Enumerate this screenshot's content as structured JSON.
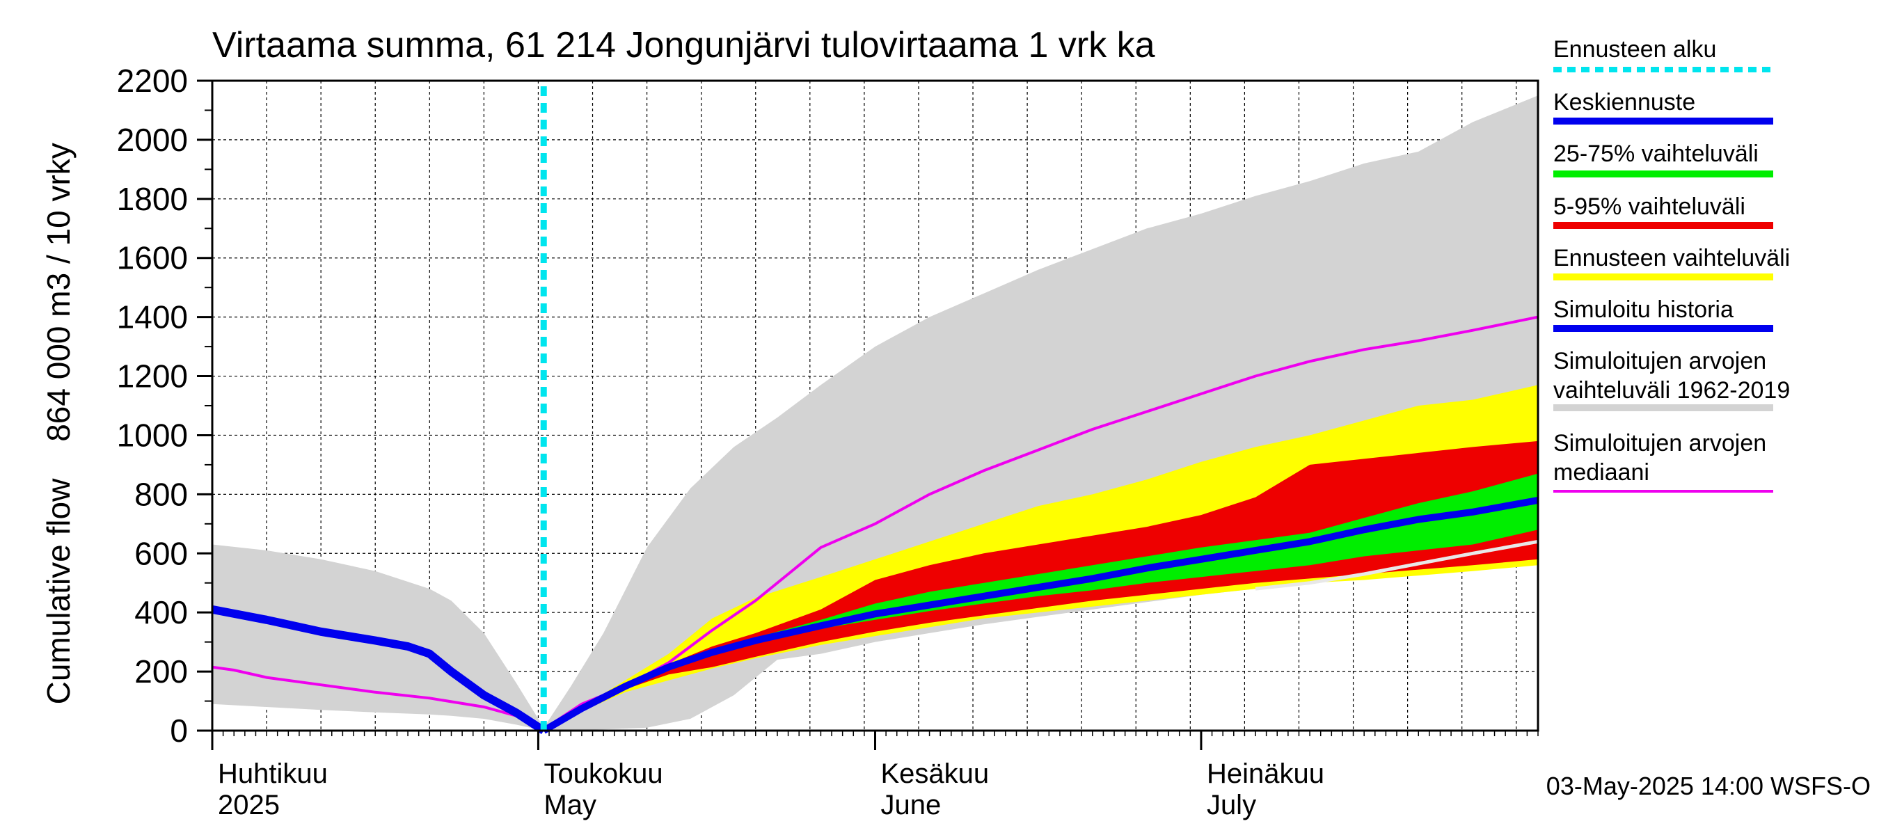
{
  "chart_data": {
    "type": "area",
    "title": "Virtaama summa, 61 214 Jongunjärvi tulovirtaama 1 vrk ka",
    "ylabel_top": "864 000 m3 / 10 vrky",
    "ylabel_bottom": "Cumulative flow",
    "ylim": [
      0,
      2200
    ],
    "yticks": [
      0,
      200,
      400,
      600,
      800,
      1000,
      1200,
      1400,
      1600,
      1800,
      2000,
      2200
    ],
    "grid": true,
    "x_unit": "days since 2025-04-01",
    "xlim": [
      0,
      122
    ],
    "forecast_start_day": 30.5,
    "month_labels": [
      {
        "fi": "Huhtikuu",
        "en": "2025",
        "day": 0
      },
      {
        "fi": "Toukokuu",
        "en": "May",
        "day": 30
      },
      {
        "fi": "Kesäkuu",
        "en": "June",
        "day": 61
      },
      {
        "fi": "Heinäkuu",
        "en": "July",
        "day": 91
      }
    ],
    "footer": "03-May-2025 14:00 WSFS-O",
    "legend": [
      {
        "label": "Ennusteen alku",
        "color": "#00e5ee",
        "style": "dotted"
      },
      {
        "label": "Keskiennuste",
        "color": "#0000ee",
        "style": "solid"
      },
      {
        "label": "25-75% vaihteluväli",
        "color": "#00ee00",
        "style": "solid"
      },
      {
        "label": "5-95% vaihteluväli",
        "color": "#ee0000",
        "style": "solid"
      },
      {
        "label": "Ennusteen vaihteluväli",
        "color": "#ffff00",
        "style": "solid"
      },
      {
        "label": "Simuloitu historia",
        "color": "#0000ee",
        "style": "solid"
      },
      {
        "label": "Simuloitujen arvojen vaihteluväli 1962-2019",
        "lines": [
          "Simuloitujen arvojen",
          "vaihteluväli 1962-2019"
        ],
        "color": "#d3d3d3",
        "style": "solid"
      },
      {
        "label": "Simuloitujen arvojen mediaani",
        "lines": [
          "Simuloitujen arvojen",
          "mediaani"
        ],
        "color": "#ee00ee",
        "style": "solid"
      }
    ],
    "series": {
      "hist_range": {
        "x": [
          0,
          5,
          10,
          15,
          20,
          22,
          25,
          28,
          30.5,
          33,
          36,
          40,
          44,
          48,
          52,
          56,
          61,
          66,
          71,
          76,
          81,
          86,
          91,
          96,
          101,
          106,
          111,
          116,
          122
        ],
        "upper": [
          630,
          610,
          580,
          540,
          480,
          440,
          330,
          160,
          10,
          150,
          330,
          620,
          820,
          960,
          1060,
          1170,
          1300,
          1400,
          1480,
          1560,
          1630,
          1700,
          1750,
          1810,
          1860,
          1920,
          1960,
          2060,
          2150
        ],
        "lower": [
          90,
          80,
          70,
          62,
          55,
          50,
          40,
          20,
          0,
          2,
          4,
          10,
          40,
          120,
          240,
          260,
          300,
          330,
          360,
          385,
          410,
          435,
          460,
          480,
          500,
          525,
          550,
          575,
          600
        ]
      },
      "forecast_range": {
        "x": [
          30.5,
          34,
          38,
          42,
          46,
          50,
          56,
          61,
          66,
          71,
          76,
          81,
          86,
          91,
          96,
          101,
          106,
          111,
          116,
          122
        ],
        "upper": [
          0,
          80,
          170,
          260,
          380,
          450,
          520,
          580,
          640,
          700,
          760,
          800,
          850,
          910,
          960,
          1000,
          1050,
          1100,
          1120,
          1170
        ],
        "lower": [
          0,
          65,
          130,
          170,
          210,
          245,
          290,
          320,
          350,
          380,
          400,
          420,
          440,
          460,
          480,
          500,
          510,
          525,
          540,
          560
        ]
      },
      "p5_95": {
        "x": [
          30.5,
          34,
          38,
          42,
          46,
          50,
          56,
          61,
          66,
          71,
          76,
          81,
          86,
          91,
          96,
          101,
          106,
          111,
          116,
          122
        ],
        "upper": [
          0,
          75,
          155,
          225,
          285,
          330,
          410,
          510,
          560,
          600,
          630,
          660,
          690,
          730,
          790,
          900,
          920,
          940,
          960,
          980
        ],
        "lower": [
          0,
          70,
          140,
          190,
          215,
          250,
          300,
          335,
          365,
          390,
          415,
          440,
          460,
          480,
          500,
          515,
          530,
          545,
          560,
          580
        ]
      },
      "p25_75": {
        "x": [
          30.5,
          34,
          38,
          42,
          46,
          50,
          56,
          61,
          66,
          71,
          76,
          81,
          86,
          91,
          96,
          101,
          106,
          111,
          116,
          122
        ],
        "upper": [
          0,
          80,
          155,
          220,
          275,
          315,
          375,
          430,
          470,
          500,
          530,
          560,
          590,
          620,
          645,
          670,
          720,
          770,
          810,
          870
        ],
        "lower": [
          0,
          75,
          145,
          205,
          255,
          295,
          345,
          375,
          405,
          430,
          455,
          475,
          500,
          520,
          540,
          560,
          590,
          610,
          630,
          680
        ]
      },
      "median_forecast": {
        "x": [
          30.5,
          34,
          38,
          42,
          46,
          50,
          56,
          61,
          66,
          71,
          76,
          81,
          86,
          91,
          96,
          101,
          106,
          111,
          116,
          122
        ],
        "y": [
          0,
          75,
          150,
          215,
          265,
          305,
          355,
          395,
          425,
          455,
          485,
          515,
          550,
          580,
          610,
          640,
          680,
          715,
          740,
          780
        ]
      },
      "simulated_history": {
        "x": [
          0,
          5,
          10,
          15,
          18,
          20,
          22,
          25,
          28,
          30.5
        ],
        "y": [
          410,
          375,
          335,
          305,
          285,
          260,
          200,
          120,
          60,
          0
        ]
      },
      "hist_median": {
        "x": [
          0,
          2,
          5,
          10,
          15,
          20,
          25,
          28,
          30.5,
          34,
          38,
          42,
          46,
          50,
          53,
          56,
          61,
          66,
          71,
          76,
          81,
          86,
          91,
          96,
          101,
          106,
          111,
          116,
          122
        ],
        "y": [
          215,
          205,
          180,
          155,
          130,
          110,
          80,
          50,
          5,
          90,
          150,
          230,
          340,
          440,
          530,
          620,
          700,
          800,
          880,
          950,
          1020,
          1080,
          1140,
          1200,
          1250,
          1290,
          1320,
          1355,
          1400
        ]
      },
      "white_line": {
        "x": [
          96,
          101,
          106,
          111,
          116,
          122
        ],
        "y": [
          480,
          500,
          530,
          565,
          600,
          640
        ]
      }
    }
  }
}
